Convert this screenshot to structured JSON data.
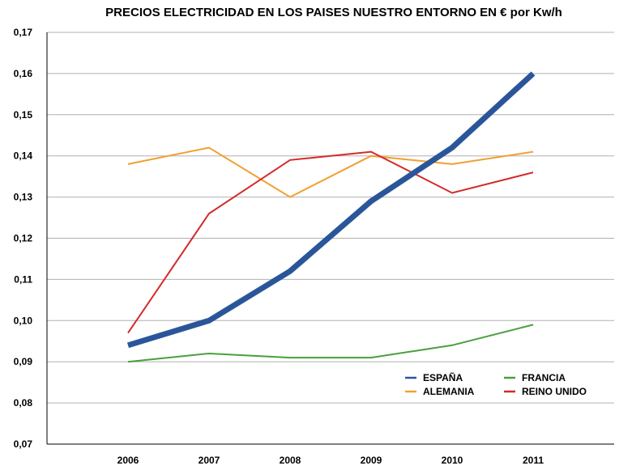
{
  "chart_data": {
    "type": "line",
    "title": "PRECIOS ELECTRICIDAD EN LOS PAISES NUESTRO ENTORNO EN € por Kw/h",
    "xlabel": "",
    "ylabel": "",
    "categories": [
      "2006",
      "2007",
      "2008",
      "2009",
      "2010",
      "2011"
    ],
    "ylim": [
      0.07,
      0.17
    ],
    "yticks": [
      "0,07",
      "0,08",
      "0,09",
      "0,10",
      "0,11",
      "0,12",
      "0,13",
      "0,14",
      "0,15",
      "0,16",
      "0,17"
    ],
    "grid": true,
    "legend_position": "bottom-right",
    "series": [
      {
        "name": "ESPAÑA",
        "color": "#2a5699",
        "values": [
          0.094,
          0.1,
          0.112,
          0.129,
          0.142,
          0.16
        ]
      },
      {
        "name": "ALEMANIA",
        "color": "#f0a030",
        "values": [
          0.138,
          0.142,
          0.13,
          0.14,
          0.138,
          0.141
        ]
      },
      {
        "name": "FRANCIA",
        "color": "#4a9e3e",
        "values": [
          0.09,
          0.092,
          0.091,
          0.091,
          0.094,
          0.099
        ]
      },
      {
        "name": "REINO UNIDO",
        "color": "#d42a2a",
        "values": [
          0.097,
          0.126,
          0.139,
          0.141,
          0.131,
          0.136
        ]
      }
    ]
  }
}
